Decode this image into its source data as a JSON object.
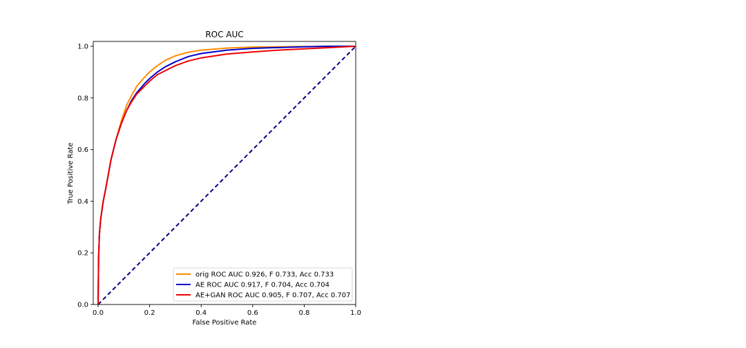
{
  "chart_data": {
    "type": "line",
    "title": "ROC AUC",
    "xlabel": "False Positive Rate",
    "ylabel": "True Positive Rate",
    "xlim": [
      0.0,
      1.0
    ],
    "ylim": [
      0.0,
      1.0
    ],
    "x_ticks": [
      "0.0",
      "0.2",
      "0.4",
      "0.6",
      "0.8",
      "1.0"
    ],
    "y_ticks": [
      "0.0",
      "0.2",
      "0.4",
      "0.6",
      "0.8",
      "1.0"
    ],
    "grid": false,
    "legend_position": "lower-right",
    "series": [
      {
        "name": "orig ROC AUC 0.926, F 0.733, Acc 0.733",
        "color": "#ff8c00",
        "x": [
          0,
          0.002,
          0.005,
          0.01,
          0.02,
          0.03,
          0.05,
          0.07,
          0.09,
          0.11,
          0.13,
          0.15,
          0.18,
          0.2,
          0.23,
          0.26,
          0.3,
          0.35,
          0.4,
          0.5,
          0.6,
          0.7,
          0.8,
          0.9,
          1.0
        ],
        "y": [
          0,
          0.18,
          0.27,
          0.33,
          0.4,
          0.45,
          0.56,
          0.64,
          0.71,
          0.77,
          0.81,
          0.845,
          0.88,
          0.9,
          0.925,
          0.945,
          0.963,
          0.977,
          0.985,
          0.993,
          0.997,
          0.998,
          0.999,
          1.0,
          1.0
        ]
      },
      {
        "name": "AE ROC AUC 0.917, F 0.704, Acc 0.704",
        "color": "#0000cd",
        "x": [
          0,
          0.002,
          0.005,
          0.01,
          0.02,
          0.03,
          0.05,
          0.07,
          0.09,
          0.11,
          0.13,
          0.15,
          0.18,
          0.2,
          0.23,
          0.26,
          0.3,
          0.35,
          0.4,
          0.5,
          0.6,
          0.7,
          0.8,
          0.9,
          1.0
        ],
        "y": [
          0,
          0.18,
          0.27,
          0.33,
          0.4,
          0.45,
          0.56,
          0.64,
          0.7,
          0.75,
          0.79,
          0.82,
          0.855,
          0.875,
          0.9,
          0.92,
          0.94,
          0.96,
          0.972,
          0.985,
          0.992,
          0.995,
          0.998,
          1.0,
          1.0
        ]
      },
      {
        "name": "AE+GAN ROC AUC 0.905, F 0.707, Acc 0.707",
        "color": "#ee0000",
        "x": [
          0,
          0.002,
          0.005,
          0.01,
          0.02,
          0.03,
          0.05,
          0.07,
          0.09,
          0.11,
          0.13,
          0.15,
          0.18,
          0.2,
          0.23,
          0.26,
          0.3,
          0.35,
          0.4,
          0.5,
          0.6,
          0.7,
          0.8,
          0.9,
          1.0
        ],
        "y": [
          0,
          0.18,
          0.27,
          0.33,
          0.4,
          0.45,
          0.56,
          0.64,
          0.7,
          0.75,
          0.785,
          0.815,
          0.845,
          0.865,
          0.89,
          0.905,
          0.925,
          0.943,
          0.955,
          0.97,
          0.978,
          0.985,
          0.99,
          0.995,
          1.0
        ]
      }
    ],
    "reference_line": {
      "color": "#000080",
      "style": "dashed",
      "x": [
        0,
        1
      ],
      "y": [
        0,
        1
      ]
    }
  }
}
